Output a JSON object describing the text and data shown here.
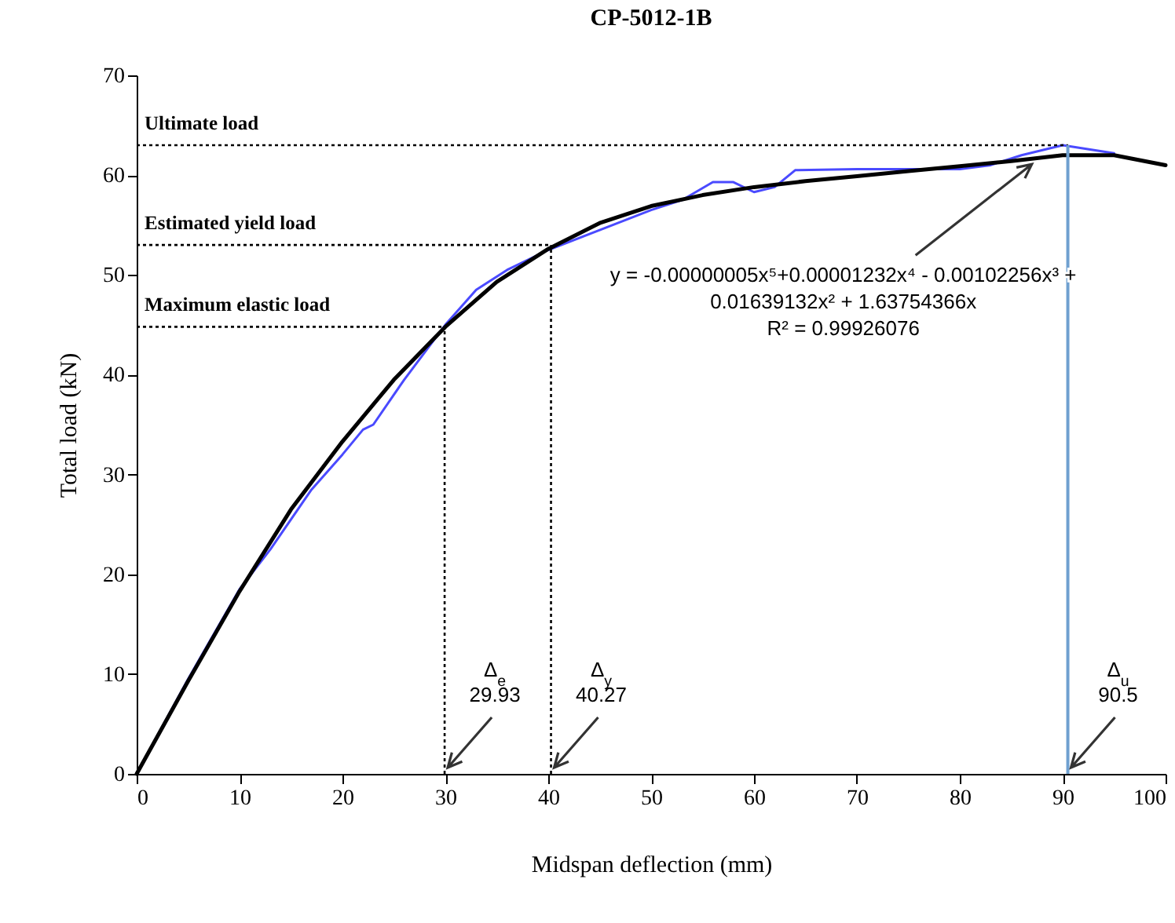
{
  "chart_data": {
    "type": "line",
    "title": "CP-5012-1B",
    "xlabel": "Midspan deflection (mm)",
    "ylabel": "Total load (kN)",
    "xlim": [
      0,
      100
    ],
    "xticks": [
      0,
      10,
      20,
      30,
      40,
      50,
      60,
      70,
      80,
      90,
      100
    ],
    "ylim": [
      0,
      70
    ],
    "yticks": [
      0,
      10,
      20,
      30,
      40,
      50,
      60,
      70
    ],
    "grid": false,
    "series": [
      {
        "color": "#4a4aff",
        "x": [
          0,
          5,
          10,
          13,
          17,
          20,
          22,
          23,
          26,
          30,
          33,
          36,
          40,
          45,
          50,
          53,
          56,
          58,
          60,
          62,
          64,
          70,
          80,
          83,
          86,
          90,
          95
        ],
        "values": [
          0,
          9.5,
          18.5,
          22.5,
          28.5,
          32,
          34.5,
          35,
          39.5,
          45,
          48.5,
          50.5,
          52.5,
          54.5,
          56.5,
          57.5,
          59.3,
          59.3,
          58.3,
          58.8,
          60.5,
          60.6,
          60.6,
          61,
          62,
          63,
          62.2
        ]
      },
      {
        "color": "#000000",
        "x": [
          0,
          5,
          10,
          15,
          20,
          25,
          30,
          35,
          40,
          45,
          50,
          55,
          60,
          65,
          70,
          75,
          80,
          85,
          90,
          95,
          100
        ],
        "values": [
          0,
          9.3,
          18.3,
          26.5,
          33.3,
          39.5,
          44.8,
          49.3,
          52.6,
          55.2,
          56.9,
          58,
          58.8,
          59.4,
          59.9,
          60.4,
          60.9,
          61.4,
          62,
          62,
          61
        ]
      }
    ],
    "ref_lines": [
      {
        "axis": "y",
        "value": 44.8,
        "label": "Maximum elastic load",
        "line_style": "dotted",
        "color": "#000000"
      },
      {
        "axis": "y",
        "value": 53,
        "label": "Estimated yield load",
        "line_style": "dotted",
        "color": "#000000"
      },
      {
        "axis": "y",
        "value": 63,
        "label": "Ultimate load",
        "line_style": "dotted",
        "color": "#000000"
      },
      {
        "axis": "x",
        "value": 29.93,
        "label": "Δ$_{e}$ 29.93",
        "line_style": "dotted",
        "color": "#000000"
      },
      {
        "axis": "x",
        "value": 40.27,
        "label": "Δ$_{y}$ 40.27",
        "line_style": "dotted",
        "color": "#000000"
      },
      {
        "axis": "x",
        "value": 90.5,
        "label": "Δ$_{u}$ 90.5",
        "line_style": "solid",
        "color": "#6fa0d0"
      }
    ],
    "annotations": [
      {
        "text": "y = -0.00000005x⁵+0.00001232x⁴ - 0.00102256x³ + 0.01639132x² + 1.63754366x",
        "x": 87,
        "y": 61.1
      },
      "R² = 0.99926076"
    ]
  }
}
